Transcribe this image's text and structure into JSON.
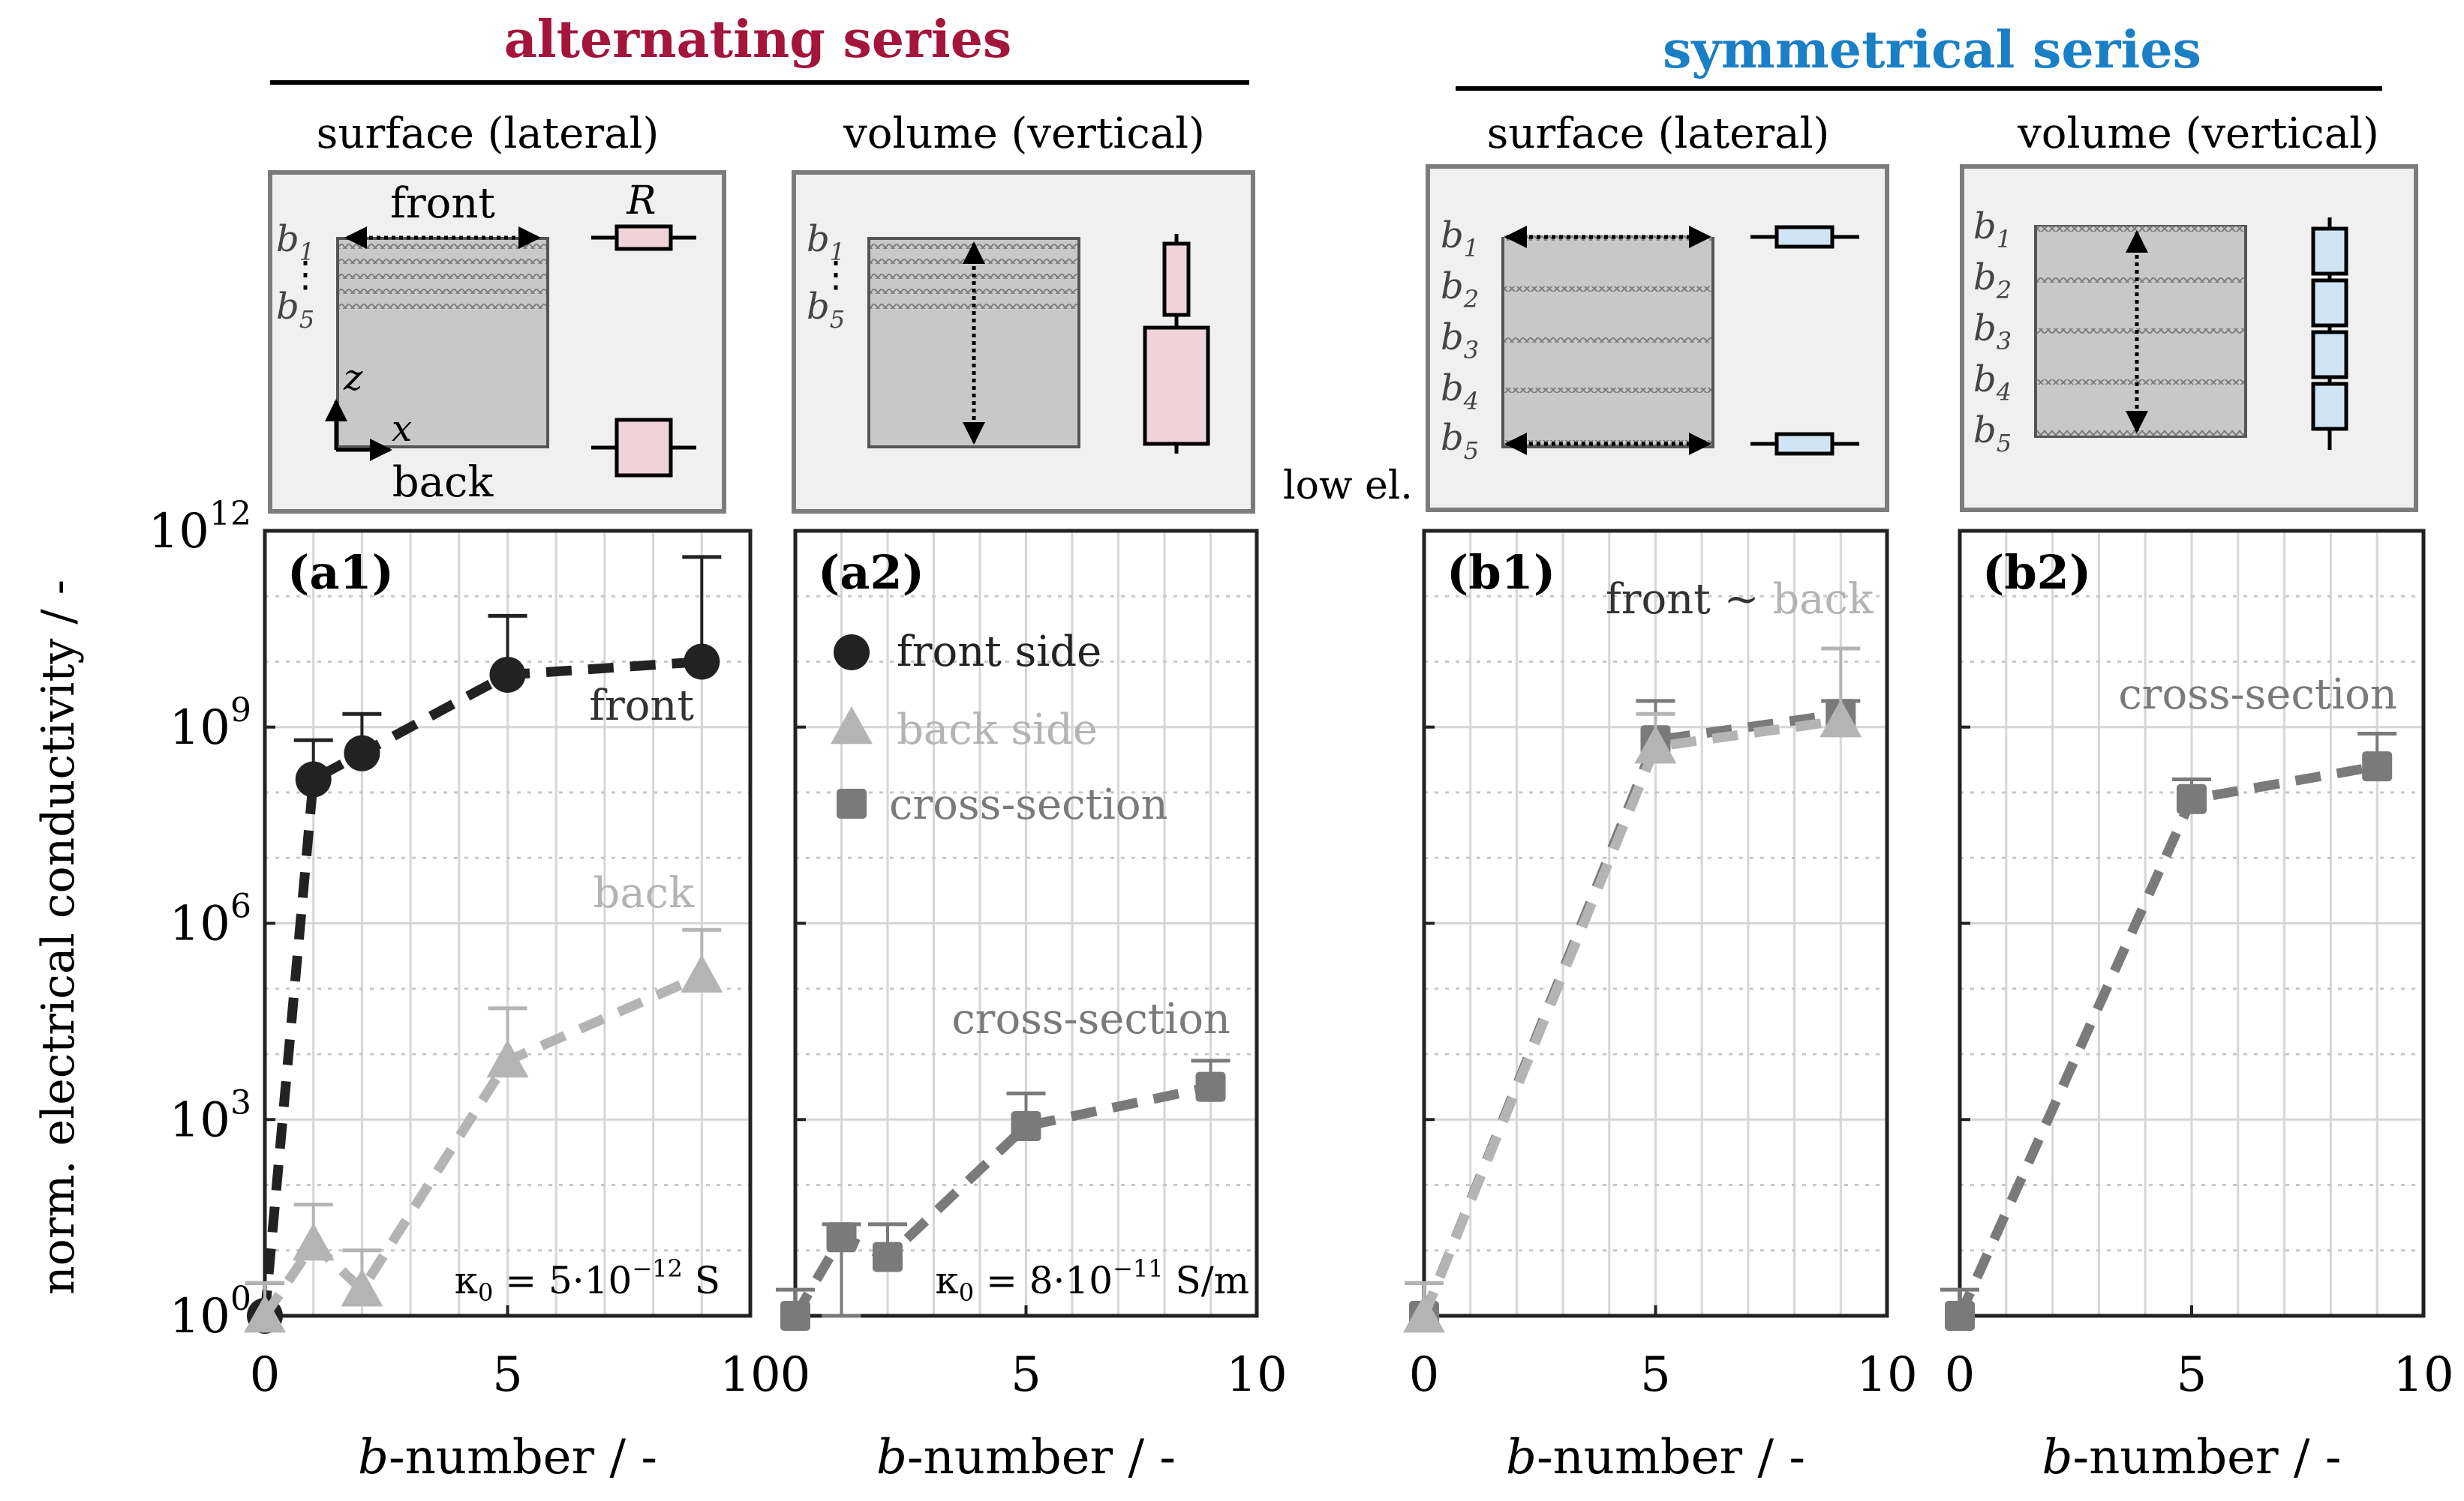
{
  "header": {
    "alternating_title": "alternating series",
    "symmetrical_title": "symmetrical series",
    "alternating_color": "#a3153a",
    "symmetrical_color": "#1a7fc4"
  },
  "schematics": {
    "a1_title": "surface (lateral)",
    "a2_title": "volume (vertical)",
    "b1_title": "surface (lateral)",
    "b2_title": "volume (vertical)",
    "front_label": "front",
    "back_label": "back",
    "resistor_label": "R",
    "axis_z": "z",
    "axis_x": "x",
    "b1": "b1",
    "b5": "b5",
    "b2": "b2",
    "b3": "b3",
    "b4": "b4",
    "low_conductivity_note": "low el. con.",
    "resistor_pink": "#f0d2d9",
    "resistor_blue": "#cfe5f3"
  },
  "shared_axis": {
    "ylabel": "norm. electrical conductivity / -",
    "xlabel_italic": "b",
    "xlabel_rest": "-number / -",
    "y_ticks": [
      "0",
      "3",
      "6",
      "9",
      "12"
    ],
    "x_ticks": [
      "0",
      "5",
      "10"
    ]
  },
  "legend": {
    "front": "front side",
    "back": "back side",
    "cross": "cross-section"
  },
  "chart_data": [
    {
      "id": "a1",
      "type": "line",
      "title": "(a1)",
      "xlabel": "b-number / -",
      "ylabel": "norm. electrical conductivity / -",
      "yscale": "log10",
      "xlim": [
        0,
        10
      ],
      "ylim_log10": [
        0,
        12
      ],
      "annotation": "κ0 = 5·10^-12 S",
      "labels": {
        "front": "front",
        "back": "back"
      },
      "series": [
        {
          "name": "front side",
          "marker": "circle",
          "color": "#222222",
          "x": [
            0,
            1,
            2,
            5,
            9
          ],
          "log10_y": [
            0,
            8.2,
            8.6,
            9.8,
            10.0
          ],
          "err_upper_log10": [
            0.5,
            8.8,
            9.2,
            10.7,
            11.6
          ]
        },
        {
          "name": "back side",
          "marker": "triangle",
          "color": "#b4b4b4",
          "x": [
            0,
            1,
            2,
            5,
            9
          ],
          "log10_y": [
            0,
            1.1,
            0.4,
            3.9,
            5.2
          ],
          "err_upper_log10": [
            0.5,
            1.7,
            1.0,
            4.7,
            5.9
          ]
        }
      ]
    },
    {
      "id": "a2",
      "type": "line",
      "title": "(a2)",
      "xlabel": "b-number / -",
      "yscale": "log10",
      "xlim": [
        0,
        10
      ],
      "ylim_log10": [
        0,
        12
      ],
      "annotation": "κ0 = 8·10^-11 S/m",
      "labels": {
        "cross": "cross-section"
      },
      "series": [
        {
          "name": "cross-section",
          "marker": "square",
          "color": "#7a7a7a",
          "x": [
            0,
            1,
            2,
            5,
            9
          ],
          "log10_y": [
            0,
            1.2,
            0.9,
            2.9,
            3.5
          ],
          "err_upper_log10": [
            0.4,
            1.4,
            1.4,
            3.4,
            3.9
          ],
          "err_lower_log10": [
            0,
            0,
            0.9,
            2.9,
            3.5
          ]
        }
      ]
    },
    {
      "id": "b1",
      "type": "line",
      "title": "(b1)",
      "xlabel": "b-number / -",
      "yscale": "log10",
      "xlim": [
        0,
        10
      ],
      "ylim_log10": [
        0,
        12
      ],
      "labels": {
        "front": "front",
        "tilde": " ~ ",
        "back": "back"
      },
      "series": [
        {
          "name": "cross-section",
          "marker": "square",
          "color": "#7a7a7a",
          "x": [
            0,
            5,
            9
          ],
          "log10_y": [
            0,
            8.8,
            9.2
          ],
          "err_upper_log10": [
            0.5,
            9.4,
            9.4
          ]
        },
        {
          "name": "back side",
          "marker": "triangle",
          "color": "#b4b4b4",
          "x": [
            0,
            5,
            9
          ],
          "log10_y": [
            0,
            8.7,
            9.1
          ],
          "err_upper_log10": [
            0.5,
            9.2,
            10.2
          ]
        }
      ]
    },
    {
      "id": "b2",
      "type": "line",
      "title": "(b2)",
      "xlabel": "b-number / -",
      "yscale": "log10",
      "xlim": [
        0,
        10
      ],
      "ylim_log10": [
        0,
        12
      ],
      "labels": {
        "cross": "cross-section"
      },
      "series": [
        {
          "name": "cross-section",
          "marker": "square",
          "color": "#7a7a7a",
          "x": [
            0,
            5,
            9
          ],
          "log10_y": [
            0,
            7.9,
            8.4
          ],
          "err_upper_log10": [
            0.4,
            8.2,
            8.9
          ]
        }
      ]
    }
  ]
}
